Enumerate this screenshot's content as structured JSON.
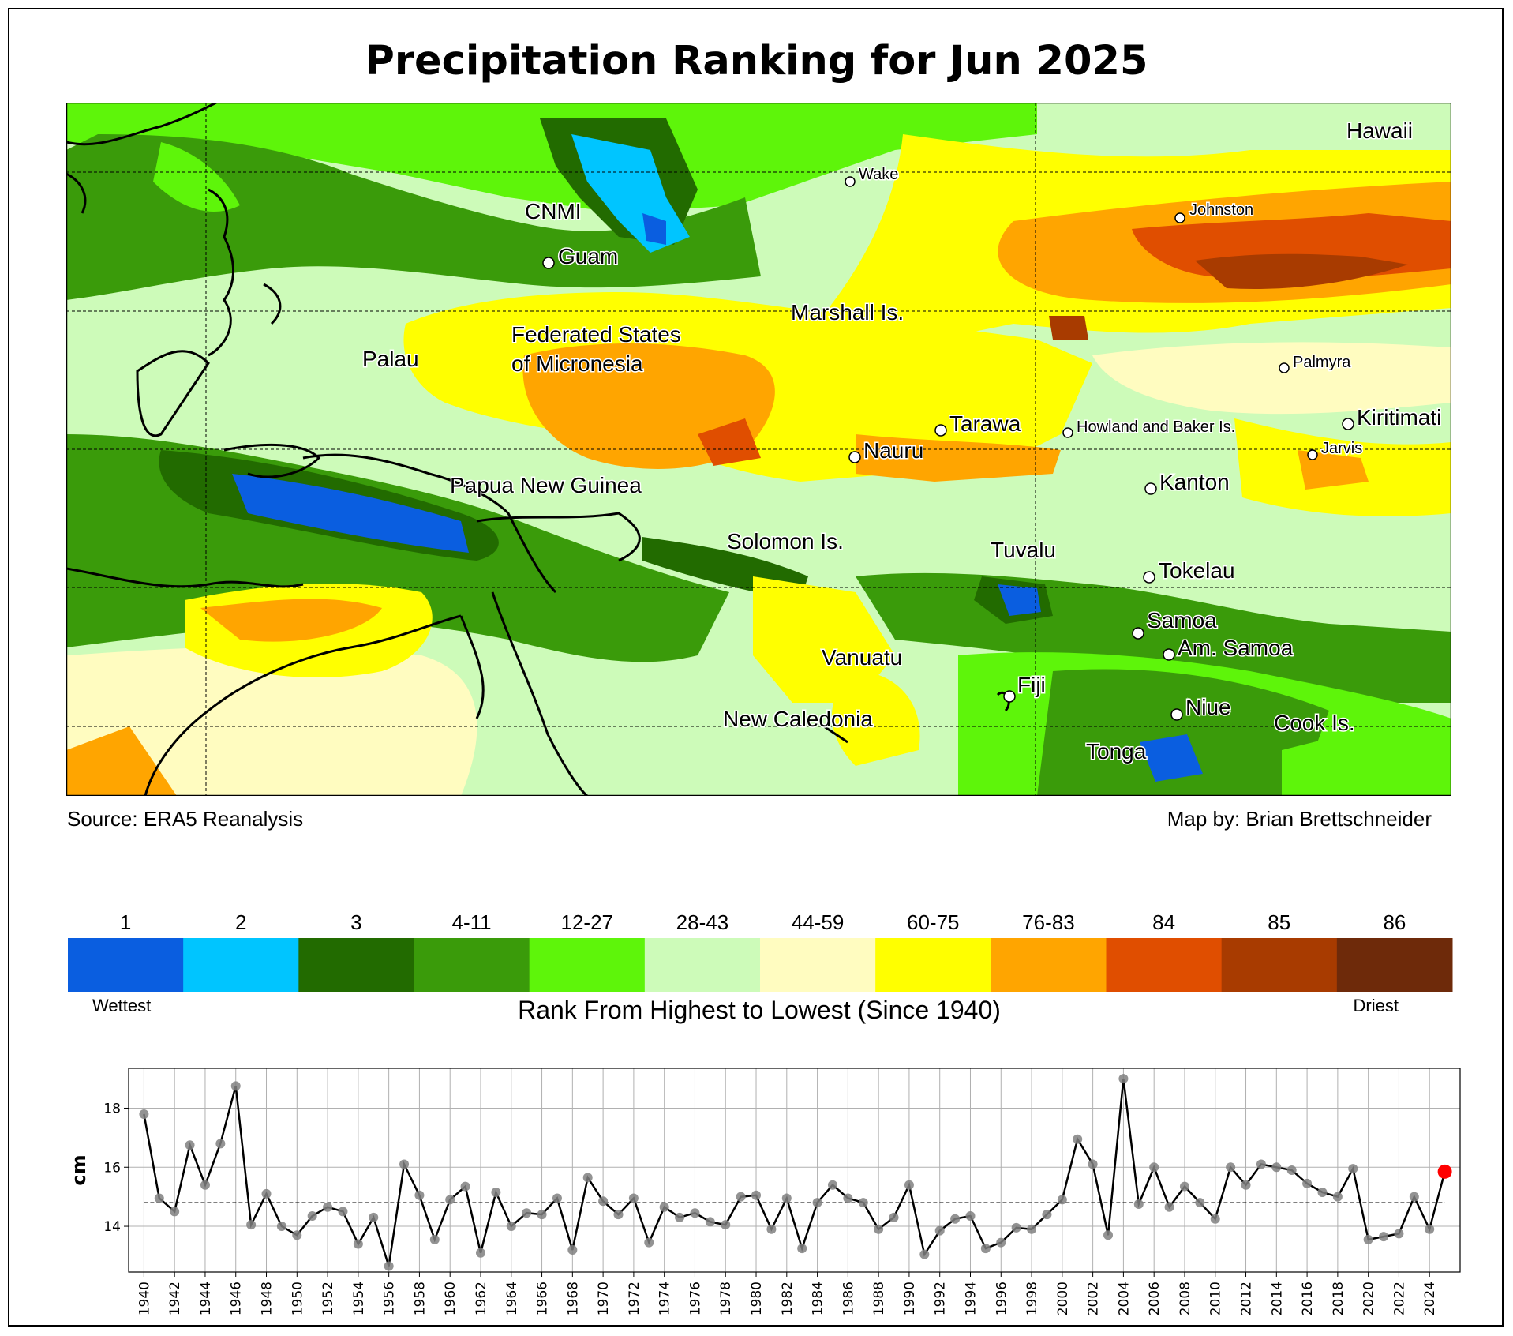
{
  "title": "Precipitation Ranking for Jun 2025",
  "source": "Source: ERA5 Reanalysis",
  "credit": "Map by: Brian Brettschneider",
  "map": {
    "labels": [
      {
        "text": "Hawaii",
        "size": "large"
      },
      {
        "text": "Wake",
        "size": "small"
      },
      {
        "text": "Johnston",
        "size": "small"
      },
      {
        "text": "CNMI",
        "size": "large"
      },
      {
        "text": "Guam",
        "size": "large"
      },
      {
        "text": "Marshall Is.",
        "size": "large"
      },
      {
        "text": "Federated States",
        "size": "large"
      },
      {
        "text": "of Micronesia",
        "size": "large"
      },
      {
        "text": "Palau",
        "size": "large"
      },
      {
        "text": "Palmyra",
        "size": "small"
      },
      {
        "text": "Kiritimati",
        "size": "large"
      },
      {
        "text": "Tarawa",
        "size": "large"
      },
      {
        "text": "Howland and Baker Is.",
        "size": "small"
      },
      {
        "text": "Nauru",
        "size": "large"
      },
      {
        "text": "Jarvis",
        "size": "small"
      },
      {
        "text": "Papua New Guinea",
        "size": "large"
      },
      {
        "text": "Kanton",
        "size": "large"
      },
      {
        "text": "Solomon Is.",
        "size": "large"
      },
      {
        "text": "Tuvalu",
        "size": "large"
      },
      {
        "text": "Tokelau",
        "size": "large"
      },
      {
        "text": "Samoa",
        "size": "large"
      },
      {
        "text": "Am. Samoa",
        "size": "large"
      },
      {
        "text": "Vanuatu",
        "size": "large"
      },
      {
        "text": "Fiji",
        "size": "large"
      },
      {
        "text": "Niue",
        "size": "large"
      },
      {
        "text": "New Caledonia",
        "size": "large"
      },
      {
        "text": "Cook Is.",
        "size": "large"
      },
      {
        "text": "Tonga",
        "size": "large"
      }
    ]
  },
  "colorbar": {
    "classes": [
      {
        "label": "1",
        "color": "#0a5ee0"
      },
      {
        "label": "2",
        "color": "#00c5ff"
      },
      {
        "label": "3",
        "color": "#226b00"
      },
      {
        "label": "4-11",
        "color": "#3a9b0a"
      },
      {
        "label": "12-27",
        "color": "#5ef50a"
      },
      {
        "label": "28-43",
        "color": "#cdfbb9"
      },
      {
        "label": "44-59",
        "color": "#fffcc0"
      },
      {
        "label": "60-75",
        "color": "#ffff00"
      },
      {
        "label": "76-83",
        "color": "#ffa500"
      },
      {
        "label": "84",
        "color": "#e04e00"
      },
      {
        "label": "85",
        "color": "#a83b00"
      },
      {
        "label": "86",
        "color": "#6e2a0a"
      }
    ],
    "left_note": "Wettest",
    "right_note": "Driest",
    "axis_label": "Rank From Highest to Lowest (Since 1940)"
  },
  "chart_data": {
    "type": "line",
    "title": "",
    "xlabel": "",
    "ylabel": "cm",
    "ylim": [
      12.45,
      19.35
    ],
    "xlim": [
      1939,
      2026
    ],
    "yticks": [
      "14",
      "16",
      "18"
    ],
    "xticks": [
      "1940",
      "1942",
      "1944",
      "1946",
      "1948",
      "1950",
      "1952",
      "1954",
      "1956",
      "1958",
      "1960",
      "1962",
      "1964",
      "1966",
      "1968",
      "1970",
      "1972",
      "1974",
      "1976",
      "1978",
      "1980",
      "1982",
      "1984",
      "1986",
      "1988",
      "1990",
      "1992",
      "1994",
      "1996",
      "1998",
      "2000",
      "2002",
      "2004",
      "2006",
      "2008",
      "2010",
      "2012",
      "2014",
      "2016",
      "2018",
      "2020",
      "2022",
      "2024"
    ],
    "mean": 14.8,
    "highlight_year": 2025,
    "x": [
      1940,
      1941,
      1942,
      1943,
      1944,
      1945,
      1946,
      1947,
      1948,
      1949,
      1950,
      1951,
      1952,
      1953,
      1954,
      1955,
      1956,
      1957,
      1958,
      1959,
      1960,
      1961,
      1962,
      1963,
      1964,
      1965,
      1966,
      1967,
      1968,
      1969,
      1970,
      1971,
      1972,
      1973,
      1974,
      1975,
      1976,
      1977,
      1978,
      1979,
      1980,
      1981,
      1982,
      1983,
      1984,
      1985,
      1986,
      1987,
      1988,
      1989,
      1990,
      1991,
      1992,
      1993,
      1994,
      1995,
      1996,
      1997,
      1998,
      1999,
      2000,
      2001,
      2002,
      2003,
      2004,
      2005,
      2006,
      2007,
      2008,
      2009,
      2010,
      2011,
      2012,
      2013,
      2014,
      2015,
      2016,
      2017,
      2018,
      2019,
      2020,
      2021,
      2022,
      2023,
      2024,
      2025
    ],
    "values": [
      17.8,
      14.95,
      14.5,
      16.75,
      15.4,
      16.8,
      18.75,
      14.05,
      15.1,
      14.0,
      13.7,
      14.35,
      14.65,
      14.5,
      13.4,
      14.3,
      12.65,
      16.1,
      15.05,
      13.55,
      14.9,
      15.35,
      13.1,
      15.15,
      14.0,
      14.45,
      14.4,
      14.95,
      13.2,
      15.65,
      14.85,
      14.4,
      14.95,
      13.45,
      14.65,
      14.3,
      14.45,
      14.15,
      14.05,
      15.0,
      15.05,
      13.9,
      14.95,
      13.25,
      14.8,
      15.4,
      14.95,
      14.8,
      13.9,
      14.3,
      15.4,
      13.05,
      13.85,
      14.25,
      14.35,
      13.25,
      13.45,
      13.95,
      13.9,
      14.4,
      14.9,
      16.95,
      16.1,
      13.7,
      19.0,
      14.75,
      16.0,
      14.65,
      15.35,
      14.8,
      14.25,
      16.0,
      15.4,
      16.1,
      16.0,
      15.9,
      15.45,
      15.15,
      15.0,
      15.95,
      13.55,
      13.65,
      13.75,
      15.0,
      13.9,
      15.85
    ]
  }
}
